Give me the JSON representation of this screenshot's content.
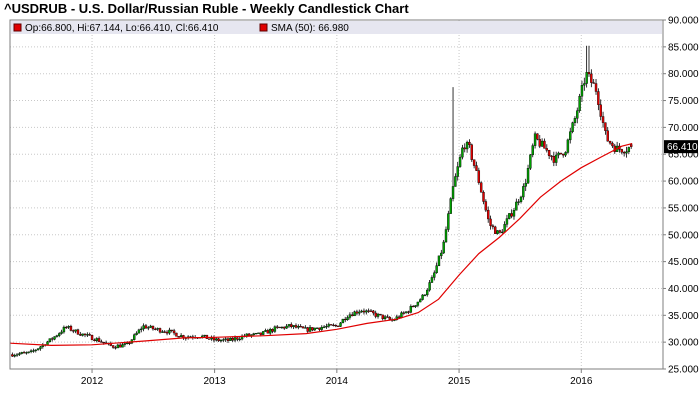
{
  "title": "^USDRUB - U.S. Dollar/Russian Ruble - Weekly Candlestick Chart",
  "legend": {
    "ohlc_text": "Op:66.800, Hi:67.144, Lo:66.410, Cl:66.410",
    "sma_text": "SMA (50): 66.980"
  },
  "last_price_label": "66.410",
  "colors": {
    "up": "#00a000",
    "down": "#e00000",
    "wick": "#000000",
    "sma": "#e00000",
    "legend_bg": "#e6e6f0",
    "legend_marker": "#e00000",
    "last_label_bg": "#000000"
  },
  "chart_data": {
    "type": "candlestick",
    "title": "^USDRUB - U.S. Dollar/Russian Ruble - Weekly Candlestick Chart",
    "x_ticks": [
      "2012",
      "2013",
      "2014",
      "2015",
      "2016"
    ],
    "x_tick_dates": [
      "2012-01-01",
      "2013-01-01",
      "2014-01-01",
      "2015-01-01",
      "2016-01-01"
    ],
    "x_range": [
      "2011-05-01",
      "2016-09-01"
    ],
    "y_ticks": [
      "25.000",
      "30.000",
      "35.000",
      "40.000",
      "45.000",
      "50.000",
      "55.000",
      "60.000",
      "65.000",
      "70.000",
      "75.000",
      "80.000",
      "85.000",
      "90.000"
    ],
    "ylim": [
      25,
      90
    ],
    "grid": true,
    "legend_position": "top",
    "last_ohlc": {
      "open": 66.8,
      "high": 67.144,
      "low": 66.41,
      "close": 66.41
    },
    "sma_last": 66.98,
    "close_series": [
      [
        "2011-05-01",
        27.7
      ],
      [
        "2011-07-01",
        28.0
      ],
      [
        "2011-09-01",
        30.5
      ],
      [
        "2011-10-15",
        32.8
      ],
      [
        "2011-12-01",
        31.5
      ],
      [
        "2012-01-15",
        30.5
      ],
      [
        "2012-03-01",
        29.2
      ],
      [
        "2012-04-15",
        29.5
      ],
      [
        "2012-06-01",
        33.0
      ],
      [
        "2012-07-01",
        32.5
      ],
      [
        "2012-08-15",
        32.0
      ],
      [
        "2012-10-01",
        31.0
      ],
      [
        "2012-11-15",
        31.2
      ],
      [
        "2013-01-01",
        30.4
      ],
      [
        "2013-02-15",
        30.3
      ],
      [
        "2013-04-01",
        31.2
      ],
      [
        "2013-05-15",
        31.4
      ],
      [
        "2013-07-01",
        32.5
      ],
      [
        "2013-08-15",
        33.0
      ],
      [
        "2013-10-01",
        32.3
      ],
      [
        "2013-11-15",
        32.8
      ],
      [
        "2014-01-01",
        33.0
      ],
      [
        "2014-02-01",
        35.0
      ],
      [
        "2014-03-15",
        36.0
      ],
      [
        "2014-05-01",
        35.0
      ],
      [
        "2014-06-15",
        34.0
      ],
      [
        "2014-08-01",
        35.8
      ],
      [
        "2014-09-15",
        38.5
      ],
      [
        "2014-10-15",
        42.0
      ],
      [
        "2014-11-15",
        48.0
      ],
      [
        "2014-12-15",
        59.0
      ],
      [
        "2015-01-15",
        67.0
      ],
      [
        "2015-02-01",
        66.0
      ],
      [
        "2015-03-01",
        60.0
      ],
      [
        "2015-04-01",
        52.0
      ],
      [
        "2015-05-01",
        50.0
      ],
      [
        "2015-06-15",
        55.0
      ],
      [
        "2015-07-15",
        59.0
      ],
      [
        "2015-08-15",
        68.0
      ],
      [
        "2015-09-15",
        66.0
      ],
      [
        "2015-10-15",
        64.0
      ],
      [
        "2015-11-15",
        66.0
      ],
      [
        "2015-12-15",
        72.0
      ],
      [
        "2016-01-15",
        80.0
      ],
      [
        "2016-02-15",
        77.0
      ],
      [
        "2016-03-15",
        68.0
      ],
      [
        "2016-04-15",
        66.0
      ],
      [
        "2016-05-15",
        66.0
      ],
      [
        "2016-06-01",
        66.41
      ]
    ],
    "sma_series": [
      [
        "2011-05-01",
        29.8
      ],
      [
        "2011-09-01",
        29.4
      ],
      [
        "2012-01-01",
        29.5
      ],
      [
        "2012-06-01",
        30.2
      ],
      [
        "2012-10-01",
        30.8
      ],
      [
        "2013-01-01",
        30.9
      ],
      [
        "2013-06-01",
        31.2
      ],
      [
        "2013-10-01",
        31.6
      ],
      [
        "2014-01-01",
        32.4
      ],
      [
        "2014-04-01",
        33.5
      ],
      [
        "2014-07-01",
        34.3
      ],
      [
        "2014-09-01",
        35.5
      ],
      [
        "2014-11-01",
        38.0
      ],
      [
        "2015-01-01",
        42.5
      ],
      [
        "2015-03-01",
        46.5
      ],
      [
        "2015-05-01",
        49.5
      ],
      [
        "2015-07-01",
        53.0
      ],
      [
        "2015-09-01",
        57.0
      ],
      [
        "2015-11-01",
        60.0
      ],
      [
        "2016-01-01",
        62.5
      ],
      [
        "2016-03-01",
        64.5
      ],
      [
        "2016-05-01",
        66.5
      ],
      [
        "2016-06-01",
        66.98
      ]
    ]
  }
}
